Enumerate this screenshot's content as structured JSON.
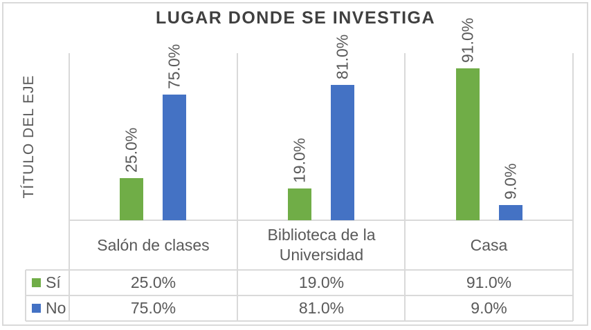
{
  "colors": {
    "series_si": "#70AD47",
    "series_no": "#4472C4",
    "gridline": "#D9D9D9",
    "title_text": "#404040",
    "body_text": "#595959"
  },
  "chart_data": {
    "type": "bar",
    "title": "LUGAR DONDE SE INVESTIGA",
    "ylabel": "TÍTULO DEL EJE",
    "xlabel": "",
    "categories": [
      "Salón de clases",
      "Biblioteca de la Universidad",
      "Casa"
    ],
    "series": [
      {
        "name": "Sí",
        "color": "#70AD47",
        "values": [
          25.0,
          19.0,
          91.0
        ],
        "labels": [
          "25.0%",
          "19.0%",
          "91.0%"
        ]
      },
      {
        "name": "No",
        "color": "#4472C4",
        "values": [
          75.0,
          81.0,
          9.0
        ],
        "labels": [
          "75.0%",
          "81.0%",
          "9.0%"
        ]
      }
    ],
    "ylim": [
      0,
      100
    ],
    "grid": "vertical-category-separators",
    "data_labels": "rotated-90-above-bars",
    "legend_position": "data-table-left-keys",
    "data_table_shown": true
  }
}
